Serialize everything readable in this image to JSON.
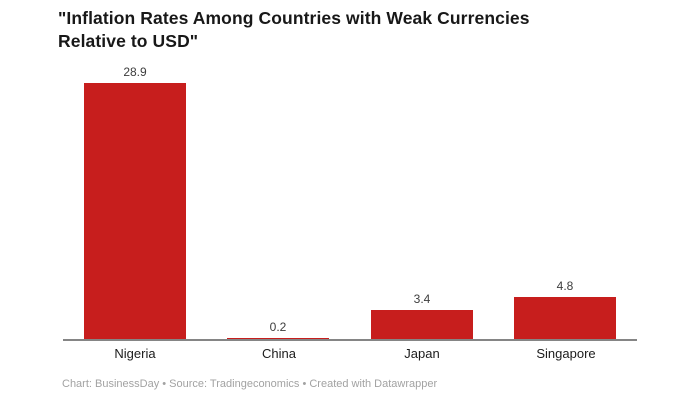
{
  "title": {
    "line1": "\"Inflation Rates Among Countries with Weak Currencies",
    "line2": "Relative to USD\"",
    "full": "\"Inflation Rates Among Countries with Weak Currencies Relative to USD\""
  },
  "footer": {
    "text": "Chart: BusinessDay • Source: Tradingeconomics • Created with Datawrapper"
  },
  "colors": {
    "bar": "#c71e1d",
    "axis_line": "#858585",
    "title_text": "#181818",
    "value_label": "#3d3d3d",
    "category_label": "#1c1c1c",
    "footer_text": "#a2a2a2",
    "background": "#ffffff"
  },
  "chart_data": {
    "type": "bar",
    "title": "\"Inflation Rates Among Countries with Weak Currencies Relative to USD\"",
    "categories": [
      "Nigeria",
      "China",
      "Japan",
      "Singapore"
    ],
    "values": [
      28.9,
      0.2,
      3.4,
      4.8
    ],
    "value_labels": [
      "28.9",
      "0.2",
      "3.4",
      "4.8"
    ],
    "series_color": "#c71e1d",
    "xlabel": "",
    "ylabel": "",
    "ylim": [
      0,
      28.9
    ],
    "grid": false,
    "legend": false,
    "value_labels_shown": true,
    "orientation": "vertical",
    "attribution": "Chart: BusinessDay • Source: Tradingeconomics • Created with Datawrapper"
  }
}
